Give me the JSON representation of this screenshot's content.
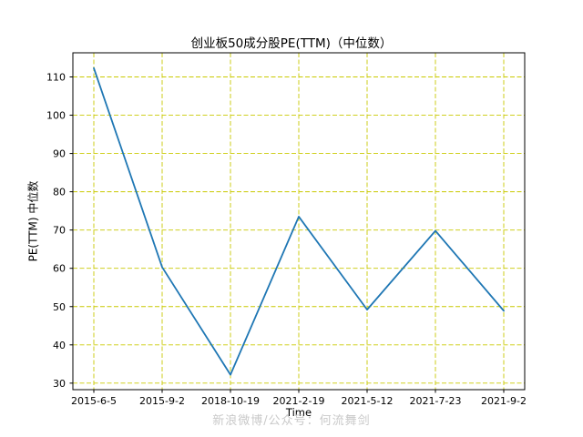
{
  "chart_data": {
    "type": "line",
    "title": "创业板50成分股PE(TTM)（中位数）",
    "xlabel": "Time",
    "ylabel": "PE(TTM) 中位数",
    "categories": [
      "2015-6-5",
      "2015-9-2",
      "2018-10-19",
      "2021-2-19",
      "2021-5-12",
      "2021-7-23",
      "2021-9-2"
    ],
    "values": [
      112.3,
      60.3,
      32.2,
      73.5,
      49.2,
      69.8,
      48.9
    ],
    "yticks": [
      30,
      40,
      50,
      60,
      70,
      80,
      90,
      100,
      110
    ],
    "ylim": [
      28.3,
      116.3
    ],
    "grid": true,
    "legend": "none",
    "line_color": "#1f77b4",
    "grid_color": "#c9c900",
    "spine_color": "#000000",
    "watermark": "新浪微博/公众号：何流舞剑"
  }
}
